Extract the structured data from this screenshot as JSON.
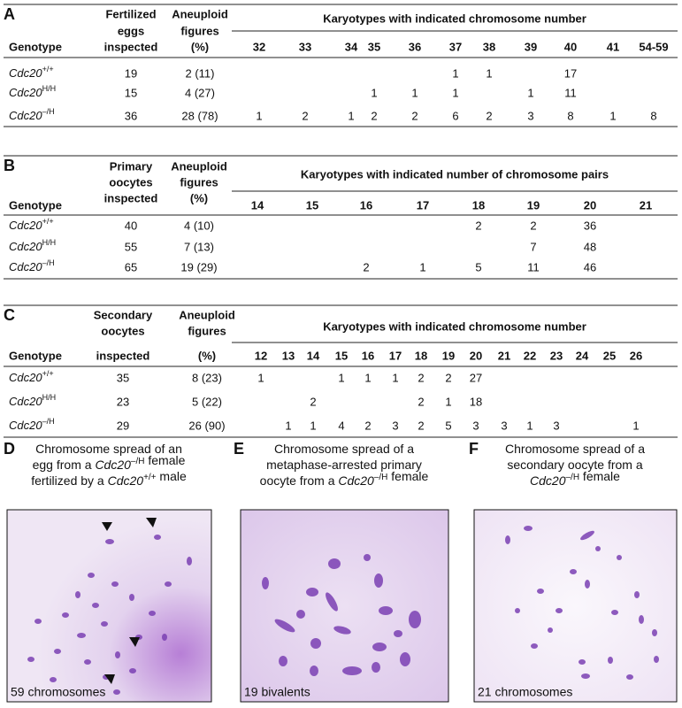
{
  "tables": [
    {
      "panel": "A",
      "genotype_header": "Genotype",
      "col2_header": [
        "Fertilized",
        "eggs",
        "inspected"
      ],
      "col3_header": [
        "Aneuploid",
        "figures",
        "(%)"
      ],
      "karyotype_header": "Karyotypes with indicated chromosome number",
      "karyotype_columns": [
        32,
        33,
        34,
        35,
        36,
        37,
        38,
        39,
        40,
        41,
        "54-59"
      ],
      "rows": [
        {
          "gene": "Cdc20",
          "allele": "+/+",
          "inspected": 19,
          "aneuploid": "2 (11)",
          "counts": [
            null,
            null,
            null,
            null,
            null,
            1,
            1,
            null,
            17,
            null,
            null
          ]
        },
        {
          "gene": "Cdc20",
          "allele": "H/H",
          "inspected": 15,
          "aneuploid": "4 (27)",
          "counts": [
            null,
            null,
            null,
            1,
            1,
            1,
            null,
            1,
            11,
            null,
            null
          ]
        },
        {
          "gene": "Cdc20",
          "allele": "–/H",
          "inspected": 36,
          "aneuploid": "28 (78)",
          "counts": [
            1,
            2,
            1,
            2,
            2,
            6,
            2,
            3,
            8,
            1,
            8
          ]
        }
      ]
    },
    {
      "panel": "B",
      "genotype_header": "Genotype",
      "col2_header": [
        "Primary",
        "oocytes",
        "inspected"
      ],
      "col3_header": [
        "Aneuploid",
        "figures",
        "(%)"
      ],
      "karyotype_header": "Karyotypes with indicated number of chromosome pairs",
      "karyotype_columns": [
        14,
        15,
        16,
        17,
        18,
        19,
        20,
        21
      ],
      "rows": [
        {
          "gene": "Cdc20",
          "allele": "+/+",
          "inspected": 40,
          "aneuploid": "4 (10)",
          "counts": [
            null,
            null,
            null,
            null,
            2,
            2,
            36,
            null
          ]
        },
        {
          "gene": "Cdc20",
          "allele": "H/H",
          "inspected": 55,
          "aneuploid": "7 (13)",
          "counts": [
            null,
            null,
            null,
            null,
            null,
            7,
            48,
            null
          ]
        },
        {
          "gene": "Cdc20",
          "allele": "–/H",
          "inspected": 65,
          "aneuploid": "19 (29)",
          "counts": [
            null,
            null,
            2,
            1,
            5,
            11,
            46,
            null
          ]
        }
      ]
    },
    {
      "panel": "C",
      "genotype_header": "Genotype",
      "col2_header": [
        "Secondary",
        "oocytes",
        "inspected"
      ],
      "col3_header": [
        "Aneuploid",
        "figures",
        "(%)"
      ],
      "karyotype_header": "Karyotypes with indicated chromosome number",
      "karyotype_columns": [
        12,
        13,
        14,
        15,
        16,
        17,
        18,
        19,
        20,
        21,
        22,
        23,
        24,
        25,
        26
      ],
      "rows": [
        {
          "gene": "Cdc20",
          "allele": "+/+",
          "inspected": 35,
          "aneuploid": "8 (23)",
          "counts": [
            1,
            null,
            null,
            1,
            1,
            1,
            2,
            2,
            27,
            null,
            null,
            null,
            null,
            null,
            null
          ]
        },
        {
          "gene": "Cdc20",
          "allele": "H/H",
          "inspected": 23,
          "aneuploid": "5 (22)",
          "counts": [
            null,
            null,
            2,
            null,
            null,
            null,
            2,
            1,
            18,
            null,
            null,
            null,
            null,
            null,
            null
          ]
        },
        {
          "gene": "Cdc20",
          "allele": "–/H",
          "inspected": 29,
          "aneuploid": "26 (90)",
          "counts": [
            null,
            1,
            1,
            4,
            2,
            3,
            2,
            5,
            3,
            3,
            1,
            3,
            null,
            null,
            1
          ]
        }
      ]
    }
  ],
  "images": [
    {
      "panel": "D",
      "caption": [
        [
          {
            "text": "Chromosome spread of an"
          }
        ],
        [
          {
            "text": "egg from a "
          },
          {
            "gene": "Cdc20",
            "allele": "–/H"
          },
          {
            "text": " female"
          }
        ],
        [
          {
            "text": "fertilized by a "
          },
          {
            "gene": "Cdc20",
            "allele": "+/+"
          },
          {
            "text": " male"
          }
        ]
      ],
      "label": "59 chromosomes"
    },
    {
      "panel": "E",
      "caption": [
        [
          {
            "text": "Chromosome spread of a"
          }
        ],
        [
          {
            "text": "metaphase-arrested primary"
          }
        ],
        [
          {
            "text": "oocyte from a "
          },
          {
            "gene": "Cdc20",
            "allele": "–/H"
          },
          {
            "text": " female"
          }
        ]
      ],
      "label": "19 bivalents"
    },
    {
      "panel": "F",
      "caption": [
        [
          {
            "text": "Chromosome spread of a"
          }
        ],
        [
          {
            "text": "secondary oocyte from a"
          }
        ],
        [
          {
            "gene": "Cdc20",
            "allele": "–/H"
          },
          {
            "text": " female"
          }
        ]
      ],
      "label": "21 chromosomes"
    }
  ]
}
